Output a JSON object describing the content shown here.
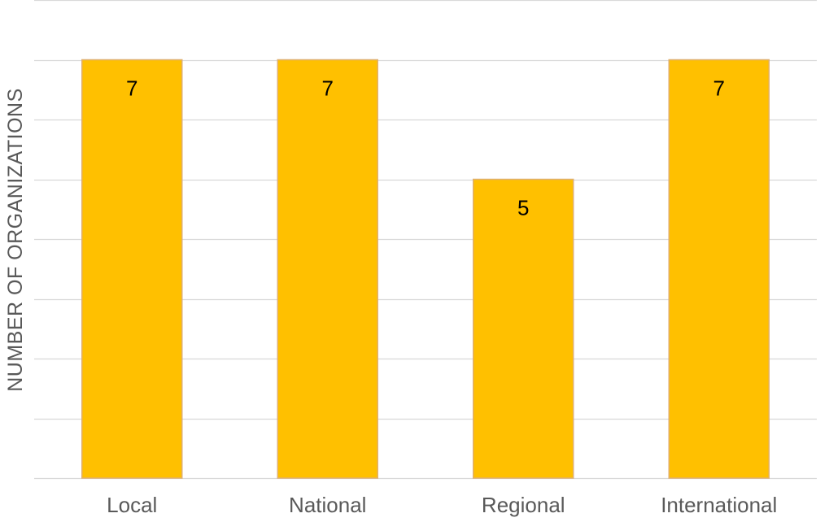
{
  "chart_data": {
    "type": "bar",
    "categories": [
      "Local",
      "National",
      "Regional",
      "International"
    ],
    "values": [
      7,
      7,
      5,
      7
    ],
    "data_labels": [
      "7",
      "7",
      "5",
      "7"
    ],
    "title": "",
    "xlabel": "",
    "ylabel": "NUMBER OF ORGANIZATIONS",
    "ylim": [
      0,
      8
    ],
    "ytick_step": 1,
    "show_y_tick_labels": false,
    "grid": true,
    "bar_color": "#FFC000",
    "bar_edge_color": "#E0B070",
    "grid_color": "#D9D9D9"
  }
}
